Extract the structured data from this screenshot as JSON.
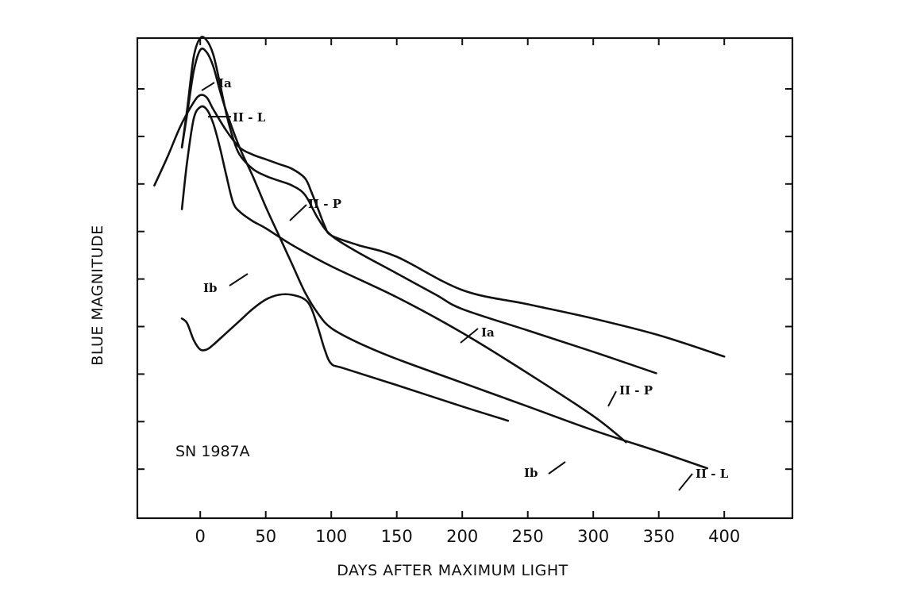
{
  "chart_data": {
    "type": "line",
    "xlabel": "DAYS AFTER MAXIMUM LIGHT",
    "ylabel": "BLUE MAGNITUDE",
    "xlim": [
      -48,
      452
    ],
    "ylim": [
      0,
      10.1
    ],
    "y_inverted": true,
    "x_ticks": [
      0,
      50,
      100,
      150,
      200,
      250,
      300,
      350,
      400
    ],
    "x_tick_labels": [
      "0",
      "50",
      "100",
      "150",
      "200",
      "250",
      "300",
      "350",
      "400"
    ],
    "y_tick_count": 9,
    "grid": false,
    "annotation": "SN 1987A",
    "series": [
      {
        "name": "Ia",
        "x": [
          -14,
          -10,
          -5,
          0,
          5,
          10,
          15,
          20,
          25,
          30,
          40,
          50,
          60,
          70,
          80,
          90,
          100,
          120,
          150,
          180,
          200,
          250,
          300,
          348
        ],
        "y": [
          2.3,
          1.5,
          0.4,
          0.0,
          0.05,
          0.35,
          0.95,
          1.6,
          2.1,
          2.45,
          2.75,
          2.9,
          3.0,
          3.1,
          3.3,
          3.8,
          4.15,
          4.5,
          4.95,
          5.4,
          5.7,
          6.15,
          6.6,
          7.05
        ]
      },
      {
        "name": "II-L",
        "x": [
          -14,
          -10,
          -5,
          0,
          5,
          10,
          15,
          20,
          30,
          40,
          50,
          60,
          70,
          80,
          90,
          100,
          120,
          150,
          200,
          250,
          300,
          350,
          387
        ],
        "y": [
          2.3,
          1.6,
          0.7,
          0.25,
          0.3,
          0.6,
          1.1,
          1.55,
          2.3,
          2.9,
          3.55,
          4.15,
          4.75,
          5.35,
          5.8,
          6.1,
          6.4,
          6.75,
          7.25,
          7.75,
          8.25,
          8.7,
          9.05
        ]
      },
      {
        "name": "II-P",
        "x": [
          -35,
          -25,
          -15,
          -5,
          0,
          5,
          10,
          20,
          30,
          40,
          50,
          60,
          70,
          80,
          85,
          90,
          95,
          100,
          120,
          150,
          200,
          250,
          300,
          350,
          400
        ],
        "y": [
          3.1,
          2.5,
          1.85,
          1.35,
          1.2,
          1.25,
          1.5,
          1.95,
          2.3,
          2.45,
          2.55,
          2.65,
          2.75,
          2.95,
          3.25,
          3.6,
          3.95,
          4.15,
          4.35,
          4.6,
          5.3,
          5.6,
          5.9,
          6.25,
          6.7
        ]
      },
      {
        "name": "Ib",
        "x": [
          -14,
          -10,
          -5,
          0,
          5,
          10,
          15,
          20,
          25,
          30,
          40,
          50,
          70,
          100,
          150,
          200,
          250,
          300,
          325
        ],
        "y": [
          3.6,
          2.6,
          1.7,
          1.45,
          1.5,
          1.8,
          2.3,
          2.9,
          3.45,
          3.65,
          3.85,
          4.0,
          4.35,
          4.8,
          5.45,
          6.2,
          7.05,
          7.95,
          8.5
        ]
      },
      {
        "name": "SN 1987A",
        "x": [
          -14,
          -10,
          -5,
          0,
          5,
          10,
          20,
          30,
          40,
          50,
          60,
          70,
          80,
          85,
          90,
          95,
          100,
          110,
          150,
          200,
          235
        ],
        "y": [
          5.9,
          6.0,
          6.35,
          6.55,
          6.55,
          6.45,
          6.2,
          5.95,
          5.7,
          5.5,
          5.4,
          5.4,
          5.5,
          5.7,
          6.1,
          6.55,
          6.85,
          6.95,
          7.3,
          7.75,
          8.05
        ]
      }
    ],
    "curve_labels": [
      {
        "text": "Ia",
        "series": "Ia"
      },
      {
        "text": "Ia",
        "series": "Ia"
      },
      {
        "text": "II - L",
        "series": "II-L"
      },
      {
        "text": "II - L",
        "series": "II-L"
      },
      {
        "text": "II - P",
        "series": "II-P"
      },
      {
        "text": "II - P",
        "series": "II-P"
      },
      {
        "text": "Ib",
        "series": "Ib"
      },
      {
        "text": "Ib",
        "series": "Ib"
      }
    ]
  }
}
